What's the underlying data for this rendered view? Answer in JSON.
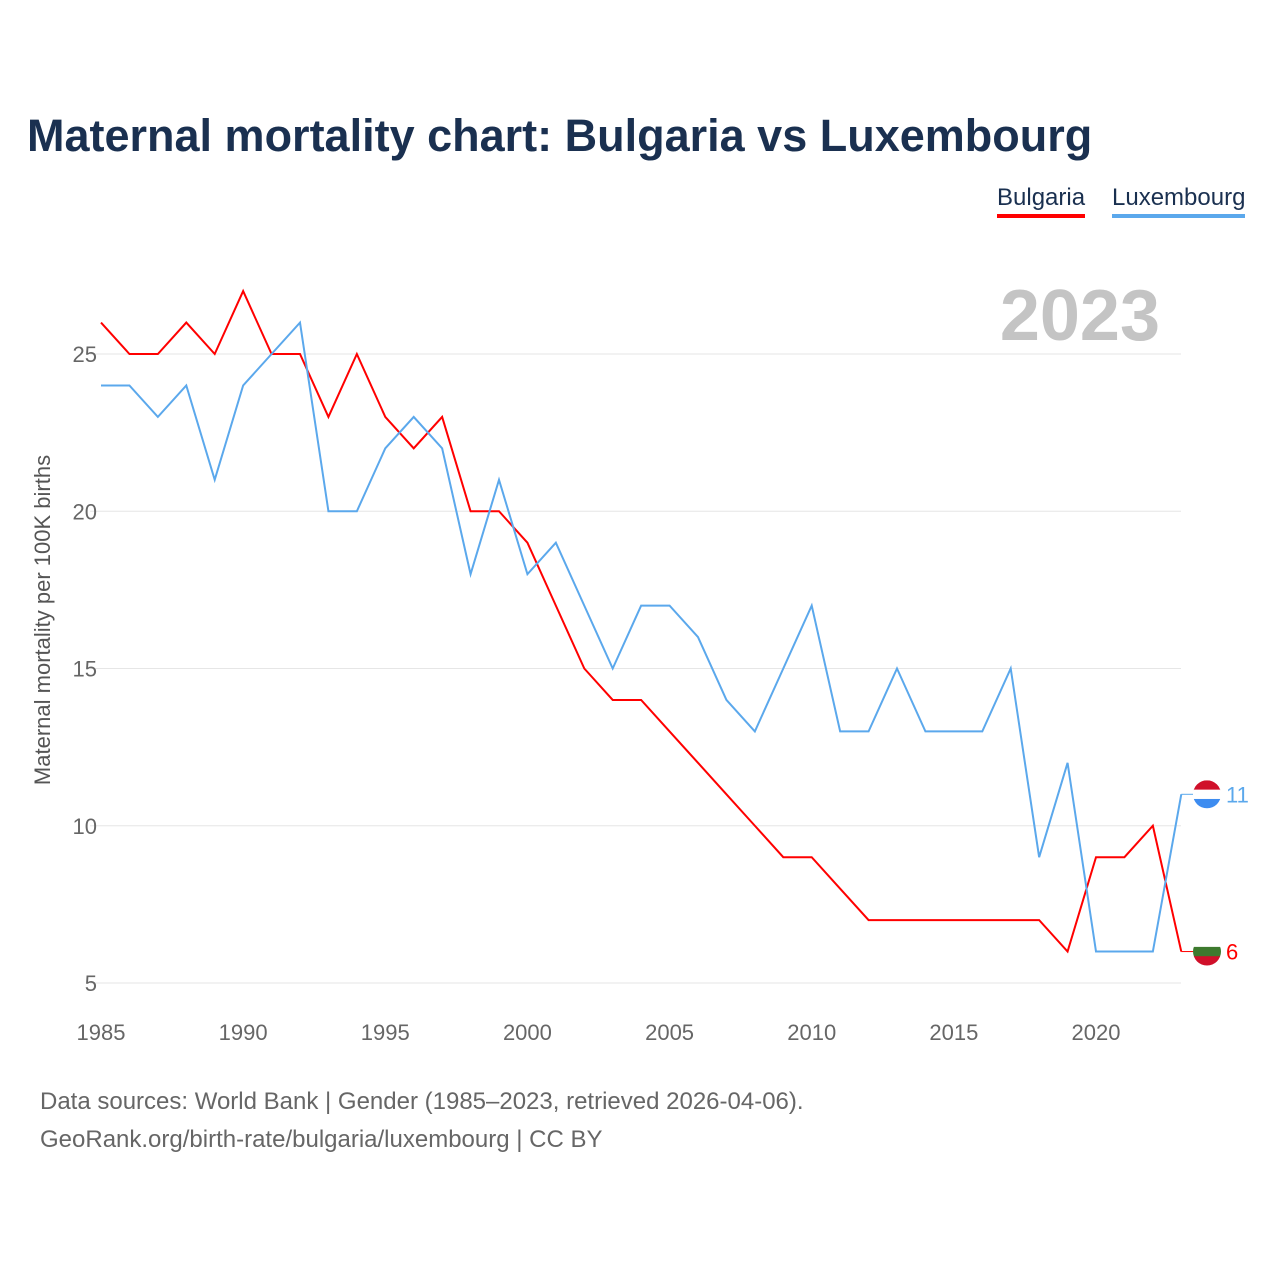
{
  "title": "Maternal mortality chart: Bulgaria vs Luxembourg",
  "year_label": "2023",
  "footer": {
    "line1": "Data sources: World Bank | Gender (1985–2023, retrieved 2026-04-06).",
    "line2": "GeoRank.org/birth-rate/bulgaria/luxembourg | CC BY"
  },
  "chart_data": {
    "type": "line",
    "title": "Maternal mortality chart: Bulgaria vs Luxembourg",
    "xlabel": "",
    "ylabel": "Maternal mortality per 100K births",
    "xlim": [
      1985,
      2023
    ],
    "ylim": [
      5,
      27
    ],
    "xticks": [
      1985,
      1990,
      1995,
      2000,
      2005,
      2010,
      2015,
      2020
    ],
    "yticks": [
      5,
      10,
      15,
      20,
      25
    ],
    "grid": true,
    "legend": "top-right",
    "x": [
      1985,
      1986,
      1987,
      1988,
      1989,
      1990,
      1991,
      1992,
      1993,
      1994,
      1995,
      1996,
      1997,
      1998,
      1999,
      2000,
      2001,
      2002,
      2003,
      2004,
      2005,
      2006,
      2007,
      2008,
      2009,
      2010,
      2011,
      2012,
      2013,
      2014,
      2015,
      2016,
      2017,
      2018,
      2019,
      2020,
      2021,
      2022,
      2023
    ],
    "series": [
      {
        "name": "Bulgaria",
        "color": "#ff0000",
        "end_label": "6",
        "values": [
          26,
          25,
          25,
          26,
          25,
          27,
          25,
          25,
          23,
          25,
          23,
          22,
          23,
          20,
          20,
          19,
          17,
          15,
          14,
          14,
          13,
          12,
          11,
          10,
          9,
          9,
          8,
          7,
          7,
          7,
          7,
          7,
          7,
          7,
          6,
          9,
          9,
          10,
          6
        ]
      },
      {
        "name": "Luxembourg",
        "color": "#5ba8ec",
        "end_label": "11",
        "values": [
          24,
          24,
          23,
          24,
          21,
          24,
          25,
          26,
          20,
          20,
          22,
          23,
          22,
          18,
          21,
          18,
          19,
          17,
          15,
          17,
          17,
          16,
          14,
          13,
          15,
          17,
          13,
          13,
          15,
          13,
          13,
          13,
          15,
          9,
          12,
          6,
          6,
          6,
          11
        ]
      }
    ]
  }
}
